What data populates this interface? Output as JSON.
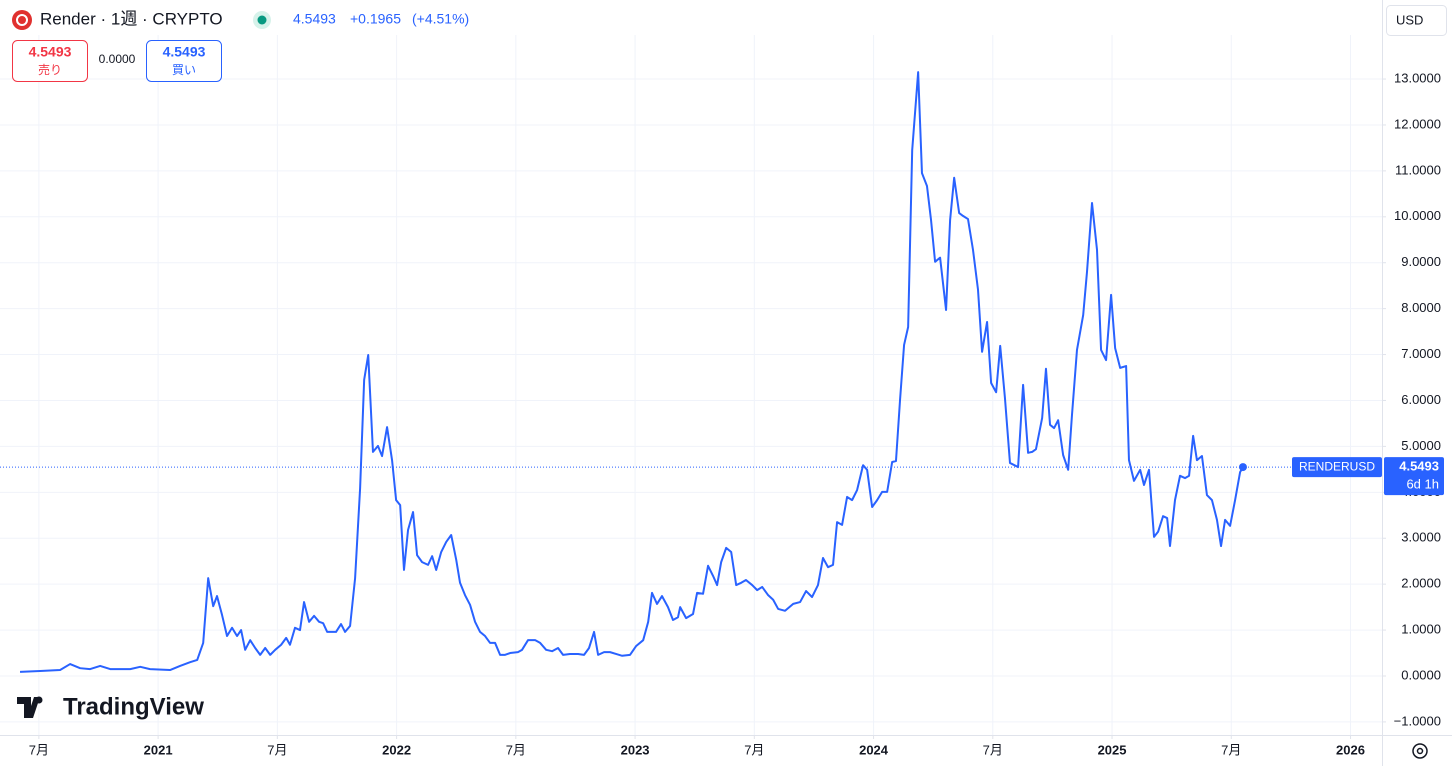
{
  "header": {
    "symbol": "Render · 1週 · CRYPTO",
    "price": "4.5493",
    "change": "+0.1965",
    "change_pct": "(+4.51%)",
    "sell_price": "4.5493",
    "sell_label": "売り",
    "spread": "0.0000",
    "buy_price": "4.5493",
    "buy_label": "買い",
    "currency": "USD",
    "brand": "TradingView"
  },
  "chart_data": {
    "type": "line",
    "color": "#2962ff",
    "grid": true,
    "x": [
      2020.421,
      2020.505,
      2020.589,
      2020.631,
      2020.673,
      2020.715,
      2020.757,
      2020.799,
      2020.841,
      2020.883,
      2020.925,
      2020.966,
      2021.05,
      2021.092,
      2021.134,
      2021.164,
      2021.189,
      2021.21,
      2021.231,
      2021.247,
      2021.268,
      2021.289,
      2021.31,
      2021.331,
      2021.348,
      2021.365,
      2021.386,
      2021.407,
      2021.428,
      2021.449,
      2021.47,
      2021.491,
      2021.516,
      2021.537,
      2021.553,
      2021.574,
      2021.595,
      2021.612,
      2021.633,
      2021.654,
      2021.675,
      2021.692,
      2021.709,
      2021.746,
      2021.767,
      2021.784,
      2021.805,
      2021.826,
      2021.847,
      2021.864,
      2021.881,
      2021.901,
      2021.922,
      2021.939,
      2021.96,
      2021.981,
      2021.998,
      2022.015,
      2022.031,
      2022.048,
      2022.069,
      2022.086,
      2022.107,
      2022.132,
      2022.149,
      2022.166,
      2022.187,
      2022.208,
      2022.229,
      2022.25,
      2022.266,
      2022.287,
      2022.308,
      2022.329,
      2022.35,
      2022.371,
      2022.392,
      2022.413,
      2022.434,
      2022.455,
      2022.476,
      2022.509,
      2022.526,
      2022.551,
      2022.581,
      2022.602,
      2022.627,
      2022.652,
      2022.677,
      2022.698,
      2022.727,
      2022.761,
      2022.786,
      2022.807,
      2022.828,
      2022.845,
      2022.87,
      2022.895,
      2022.92,
      2022.946,
      2022.979,
      2023.004,
      2023.034,
      2023.055,
      2023.071,
      2023.092,
      2023.113,
      2023.138,
      2023.159,
      2023.18,
      2023.189,
      2023.214,
      2023.243,
      2023.26,
      2023.285,
      2023.306,
      2023.327,
      2023.344,
      2023.361,
      2023.382,
      2023.403,
      2023.424,
      2023.445,
      2023.465,
      2023.491,
      2023.512,
      2023.533,
      2023.558,
      2023.579,
      2023.6,
      2023.629,
      2023.663,
      2023.692,
      2023.717,
      2023.742,
      2023.767,
      2023.788,
      2023.809,
      2023.83,
      2023.847,
      2023.868,
      2023.889,
      2023.91,
      2023.931,
      2023.956,
      2023.973,
      2023.994,
      2024.015,
      2024.036,
      2024.057,
      2024.078,
      2024.094,
      2024.111,
      2024.128,
      2024.145,
      2024.162,
      2024.187,
      2024.203,
      2024.224,
      2024.241,
      2024.258,
      2024.279,
      2024.304,
      2024.321,
      2024.338,
      2024.359,
      2024.375,
      2024.396,
      2024.417,
      2024.438,
      2024.455,
      2024.476,
      2024.493,
      2024.514,
      2024.531,
      2024.551,
      2024.572,
      2024.606,
      2024.627,
      2024.648,
      2024.665,
      2024.681,
      2024.707,
      2024.723,
      2024.74,
      2024.757,
      2024.774,
      2024.795,
      2024.816,
      2024.832,
      2024.853,
      2024.879,
      2024.895,
      2024.916,
      2024.937,
      2024.954,
      2024.975,
      2024.996,
      2025.013,
      2025.034,
      2025.059,
      2025.071,
      2025.092,
      2025.118,
      2025.134,
      2025.155,
      2025.176,
      2025.193,
      2025.214,
      2025.231,
      2025.243,
      2025.264,
      2025.285,
      2025.306,
      2025.323,
      2025.34,
      2025.356,
      2025.377,
      2025.398,
      2025.419,
      2025.44,
      2025.457,
      2025.474,
      2025.495,
      2025.516,
      2025.537,
      2025.549
    ],
    "values": [
      0.09,
      0.11,
      0.13,
      0.26,
      0.17,
      0.15,
      0.22,
      0.15,
      0.15,
      0.15,
      0.2,
      0.15,
      0.13,
      0.22,
      0.3,
      0.35,
      0.72,
      2.13,
      1.52,
      1.74,
      1.33,
      0.87,
      1.05,
      0.87,
      1.0,
      0.57,
      0.78,
      0.61,
      0.46,
      0.61,
      0.46,
      0.57,
      0.68,
      0.83,
      0.68,
      1.05,
      1.0,
      1.61,
      1.18,
      1.31,
      1.18,
      1.15,
      0.96,
      0.96,
      1.13,
      0.96,
      1.09,
      2.13,
      4.09,
      6.45,
      6.99,
      4.88,
      5.01,
      4.79,
      5.42,
      4.7,
      3.83,
      3.72,
      2.31,
      3.18,
      3.57,
      2.63,
      2.48,
      2.42,
      2.61,
      2.31,
      2.7,
      2.92,
      3.07,
      2.53,
      2.03,
      1.76,
      1.55,
      1.18,
      0.96,
      0.87,
      0.72,
      0.72,
      0.46,
      0.46,
      0.5,
      0.52,
      0.57,
      0.78,
      0.78,
      0.72,
      0.57,
      0.54,
      0.61,
      0.46,
      0.48,
      0.48,
      0.46,
      0.61,
      0.96,
      0.46,
      0.52,
      0.52,
      0.48,
      0.44,
      0.46,
      0.65,
      0.78,
      1.18,
      1.81,
      1.57,
      1.74,
      1.5,
      1.22,
      1.28,
      1.5,
      1.26,
      1.35,
      1.81,
      1.79,
      2.4,
      2.18,
      1.98,
      2.48,
      2.79,
      2.7,
      1.98,
      2.03,
      2.09,
      1.98,
      1.87,
      1.94,
      1.76,
      1.66,
      1.46,
      1.42,
      1.57,
      1.61,
      1.85,
      1.72,
      1.98,
      2.57,
      2.37,
      2.42,
      3.35,
      3.29,
      3.9,
      3.83,
      4.05,
      4.59,
      4.49,
      3.68,
      3.83,
      4.01,
      4.01,
      4.66,
      4.68,
      6.01,
      7.21,
      7.6,
      11.45,
      13.15,
      10.95,
      10.67,
      9.93,
      9.02,
      9.11,
      7.97,
      9.93,
      10.85,
      10.08,
      10.02,
      9.95,
      9.28,
      8.41,
      7.06,
      7.71,
      6.38,
      6.18,
      7.19,
      6.05,
      4.64,
      4.55,
      6.34,
      4.86,
      4.88,
      4.94,
      5.62,
      6.69,
      5.47,
      5.4,
      5.57,
      4.81,
      4.49,
      5.68,
      7.1,
      7.86,
      8.8,
      10.3,
      9.28,
      7.1,
      6.88,
      8.3,
      7.14,
      6.71,
      6.75,
      4.7,
      4.25,
      4.49,
      4.16,
      4.49,
      3.03,
      3.14,
      3.48,
      3.44,
      2.83,
      3.83,
      4.36,
      4.31,
      4.36,
      5.23,
      4.7,
      4.79,
      3.94,
      3.83,
      3.4,
      2.83,
      3.4,
      3.27,
      3.83,
      4.44,
      4.5493
    ],
    "xlim": [
      2020.337,
      2026.132
    ],
    "xticks": [
      {
        "value": 2020.5,
        "label": "7月"
      },
      2021,
      {
        "value": 2021.5,
        "label": "7月"
      },
      2022,
      {
        "value": 2022.5,
        "label": "7月"
      },
      2023,
      {
        "value": 2023.5,
        "label": "7月"
      },
      2024,
      {
        "value": 2024.5,
        "label": "7月"
      },
      2025,
      {
        "value": 2025.5,
        "label": "7月"
      },
      2026
    ],
    "ylim": [
      -1.285,
      13.959
    ],
    "yticks": [
      {
        "value": -1,
        "label": "−1.0000"
      },
      {
        "value": 0,
        "label": "0.0000"
      },
      {
        "value": 1,
        "label": "1.0000"
      },
      {
        "value": 2,
        "label": "2.0000"
      },
      {
        "value": 3,
        "label": "3.0000"
      },
      {
        "value": 4,
        "label": "4.0000"
      },
      {
        "value": 5,
        "label": "5.0000"
      },
      {
        "value": 6,
        "label": "6.0000"
      },
      {
        "value": 7,
        "label": "7.0000"
      },
      {
        "value": 8,
        "label": "8.0000"
      },
      {
        "value": 9,
        "label": "9.0000"
      },
      {
        "value": 10,
        "label": "10.0000"
      },
      {
        "value": 11,
        "label": "11.0000"
      },
      {
        "value": 12,
        "label": "12.0000"
      },
      {
        "value": 13,
        "label": "13.0000"
      }
    ],
    "price_line": {
      "label": "RENDERUSD",
      "value": 4.5493,
      "countdown": "6d 1h"
    }
  }
}
